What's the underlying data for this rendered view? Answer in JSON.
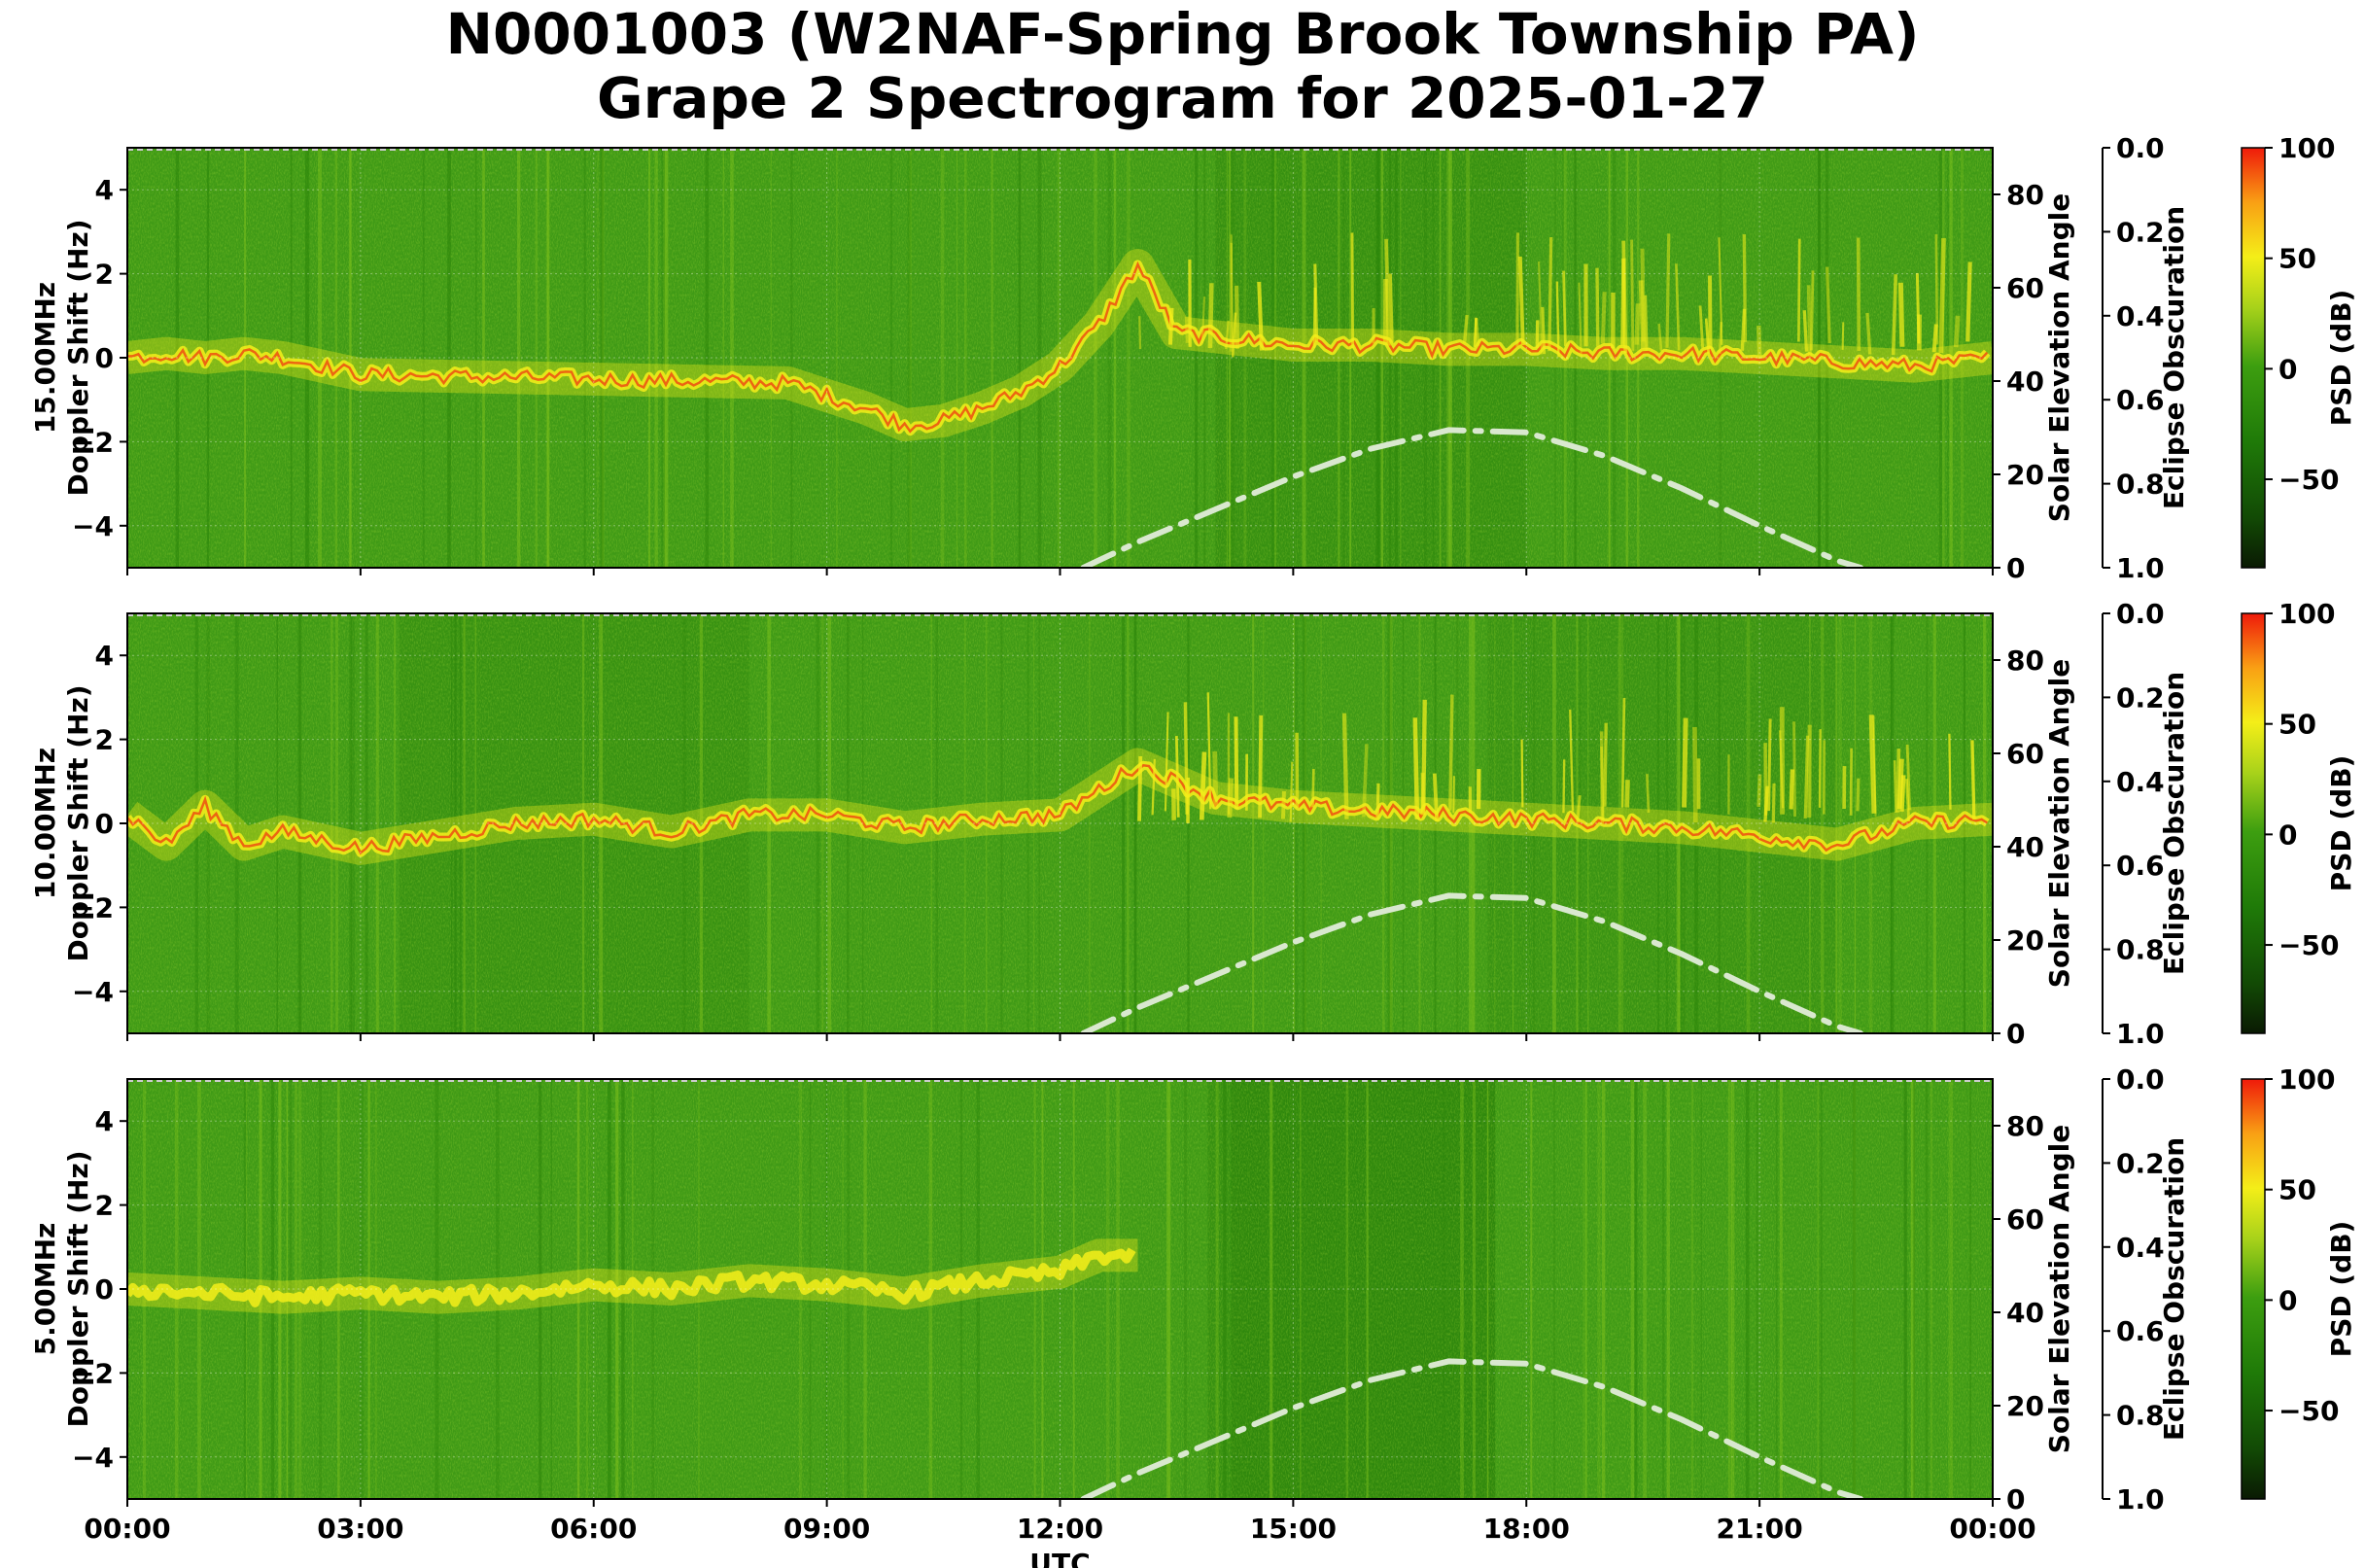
{
  "title_line1": "N0001003 (W2NAF-Spring Brook Township PA)",
  "title_line2": "Grape 2 Spectrogram for 2025-01-27",
  "chart_data": [
    {
      "type": "heatmap",
      "frequency": "15.00MHz",
      "ylabel": "Doppler Shift (Hz)",
      "ylim": [
        -5,
        5
      ],
      "yticks": [
        -4,
        -2,
        0,
        2,
        4
      ],
      "y2label": "Solar Elevation Angle",
      "y2lim": [
        0,
        90
      ],
      "y2ticks": [
        0,
        20,
        40,
        60,
        80
      ],
      "y3label": "Eclipse Obscuration",
      "y3lim": [
        1.0,
        0.0
      ],
      "y3ticks": [
        "0.0",
        "0.2",
        "0.4",
        "0.6",
        "0.8",
        "1.0"
      ],
      "colorbar": {
        "label": "PSD (dB)",
        "ticks": [
          100,
          50,
          0,
          -50
        ],
        "range": [
          -90,
          100
        ]
      },
      "doppler_trace_hz": [
        [
          0,
          0.0
        ],
        [
          0.5,
          0.1
        ],
        [
          1,
          0.0
        ],
        [
          1.5,
          0.1
        ],
        [
          2,
          0.0
        ],
        [
          2.5,
          -0.2
        ],
        [
          3,
          -0.4
        ],
        [
          8.5,
          -0.6
        ],
        [
          9,
          -0.9
        ],
        [
          9.5,
          -1.2
        ],
        [
          10,
          -1.6
        ],
        [
          10.5,
          -1.5
        ],
        [
          11,
          -1.2
        ],
        [
          11.5,
          -0.8
        ],
        [
          12,
          -0.2
        ],
        [
          12.5,
          0.8
        ],
        [
          13,
          2.2
        ],
        [
          13.5,
          0.6
        ],
        [
          14,
          0.5
        ],
        [
          15,
          0.3
        ],
        [
          16,
          0.3
        ],
        [
          17,
          0.2
        ],
        [
          18,
          0.2
        ],
        [
          19,
          0.1
        ],
        [
          20,
          0.1
        ],
        [
          21,
          0.0
        ],
        [
          22,
          -0.1
        ],
        [
          23,
          -0.2
        ],
        [
          24,
          0.0
        ]
      ],
      "solar_elevation_deg": [
        [
          12.3,
          0
        ],
        [
          13,
          5.5
        ],
        [
          14,
          12.5
        ],
        [
          15,
          19.5
        ],
        [
          16,
          25.5
        ],
        [
          17,
          29.5
        ],
        [
          18,
          29
        ],
        [
          19,
          24
        ],
        [
          20,
          17
        ],
        [
          21,
          9
        ],
        [
          22,
          1.5
        ],
        [
          22.3,
          0
        ]
      ]
    },
    {
      "type": "heatmap",
      "frequency": "10.00MHz",
      "ylabel": "Doppler Shift (Hz)",
      "ylim": [
        -5,
        5
      ],
      "yticks": [
        -4,
        -2,
        0,
        2,
        4
      ],
      "y2label": "Solar Elevation Angle",
      "y2lim": [
        0,
        90
      ],
      "y2ticks": [
        0,
        20,
        40,
        60,
        80
      ],
      "y3label": "Eclipse Obscuration",
      "y3lim": [
        1.0,
        0.0
      ],
      "y3ticks": [
        "0.0",
        "0.2",
        "0.4",
        "0.6",
        "0.8",
        "1.0"
      ],
      "colorbar": {
        "label": "PSD (dB)",
        "ticks": [
          100,
          50,
          0,
          -50
        ],
        "range": [
          -90,
          100
        ]
      },
      "doppler_trace_hz": [
        [
          0,
          0.2
        ],
        [
          0.5,
          -0.5
        ],
        [
          1,
          0.4
        ],
        [
          1.5,
          -0.5
        ],
        [
          2,
          -0.2
        ],
        [
          3,
          -0.6
        ],
        [
          4,
          -0.3
        ],
        [
          5,
          0.0
        ],
        [
          6,
          0.1
        ],
        [
          7,
          -0.2
        ],
        [
          8,
          0.2
        ],
        [
          9,
          0.2
        ],
        [
          10,
          -0.1
        ],
        [
          11,
          0.1
        ],
        [
          12,
          0.2
        ],
        [
          12.5,
          0.8
        ],
        [
          13,
          1.4
        ],
        [
          14,
          0.6
        ],
        [
          15,
          0.4
        ],
        [
          16,
          0.3
        ],
        [
          17,
          0.2
        ],
        [
          18,
          0.1
        ],
        [
          19,
          0.0
        ],
        [
          20,
          -0.1
        ],
        [
          21,
          -0.3
        ],
        [
          22,
          -0.5
        ],
        [
          23,
          0.0
        ],
        [
          24,
          0.1
        ]
      ],
      "solar_elevation_deg": [
        [
          12.3,
          0
        ],
        [
          13,
          5.5
        ],
        [
          14,
          12.5
        ],
        [
          15,
          19.5
        ],
        [
          16,
          25.5
        ],
        [
          17,
          29.5
        ],
        [
          18,
          29
        ],
        [
          19,
          24
        ],
        [
          20,
          17
        ],
        [
          21,
          9
        ],
        [
          22,
          1.5
        ],
        [
          22.3,
          0
        ]
      ]
    },
    {
      "type": "heatmap",
      "frequency": "5.00MHz",
      "ylabel": "Doppler Shift (Hz)",
      "ylim": [
        -5,
        5
      ],
      "yticks": [
        -4,
        -2,
        0,
        2,
        4
      ],
      "y2label": "Solar Elevation Angle",
      "y2lim": [
        0,
        90
      ],
      "y2ticks": [
        0,
        20,
        40,
        60,
        80
      ],
      "y3label": "Eclipse Obscuration",
      "y3lim": [
        1.0,
        0.0
      ],
      "y3ticks": [
        "0.0",
        "0.2",
        "0.4",
        "0.6",
        "0.8",
        "1.0"
      ],
      "colorbar": {
        "label": "PSD (dB)",
        "ticks": [
          100,
          50,
          0,
          -50
        ],
        "range": [
          -90,
          100
        ]
      },
      "doppler_trace_hz": [
        [
          0,
          0.0
        ],
        [
          1,
          -0.1
        ],
        [
          2,
          -0.2
        ],
        [
          3,
          -0.1
        ],
        [
          4,
          -0.2
        ],
        [
          5,
          -0.1
        ],
        [
          6,
          0.1
        ],
        [
          7,
          0.0
        ],
        [
          8,
          0.2
        ],
        [
          9,
          0.1
        ],
        [
          10,
          -0.1
        ],
        [
          11,
          0.2
        ],
        [
          12,
          0.4
        ],
        [
          12.5,
          0.8
        ],
        [
          13,
          0.8
        ]
      ],
      "solar_elevation_deg": [
        [
          12.3,
          0
        ],
        [
          13,
          5.5
        ],
        [
          14,
          12.5
        ],
        [
          15,
          19.5
        ],
        [
          16,
          25.5
        ],
        [
          17,
          29.5
        ],
        [
          18,
          29
        ],
        [
          19,
          24
        ],
        [
          20,
          17
        ],
        [
          21,
          9
        ],
        [
          22,
          1.5
        ],
        [
          22.3,
          0
        ]
      ]
    }
  ],
  "xaxis": {
    "label": "UTC",
    "xlim": [
      0,
      24
    ],
    "ticks": [
      "00:00",
      "03:00",
      "06:00",
      "09:00",
      "12:00",
      "15:00",
      "18:00",
      "21:00",
      "00:00"
    ]
  },
  "colors": {
    "background_green": "#3f9a16",
    "dark_green": "#227a08",
    "trace_yellow": "#f5ef1a",
    "trace_red": "#ef3a10",
    "elevation_curve": "#d9e8cf"
  }
}
